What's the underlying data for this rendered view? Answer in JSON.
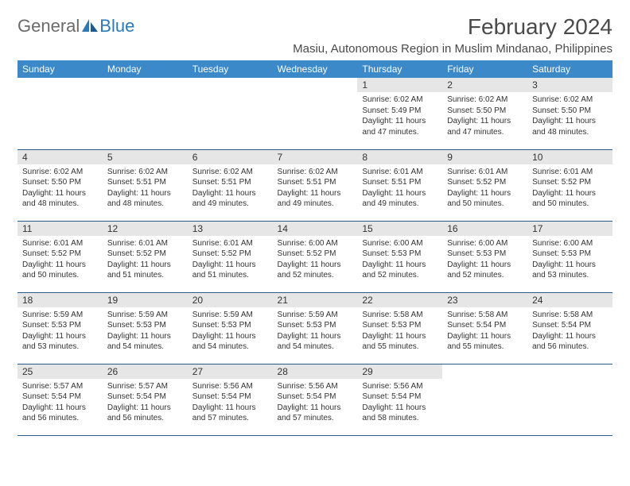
{
  "logo": {
    "text1": "General",
    "text2": "Blue"
  },
  "title": "February 2024",
  "subtitle": "Masiu, Autonomous Region in Muslim Mindanao, Philippines",
  "colors": {
    "header_bg": "#3b89c9",
    "row_divider": "#2a5a8a",
    "daynum_bg": "#e6e6e6",
    "text": "#333333",
    "logo_gray": "#6a6a6a",
    "logo_blue": "#2a7ab8"
  },
  "weekdays": [
    "Sunday",
    "Monday",
    "Tuesday",
    "Wednesday",
    "Thursday",
    "Friday",
    "Saturday"
  ],
  "weeks": [
    [
      null,
      null,
      null,
      null,
      {
        "n": "1",
        "sr": "6:02 AM",
        "ss": "5:49 PM",
        "dl": "11 hours and 47 minutes."
      },
      {
        "n": "2",
        "sr": "6:02 AM",
        "ss": "5:50 PM",
        "dl": "11 hours and 47 minutes."
      },
      {
        "n": "3",
        "sr": "6:02 AM",
        "ss": "5:50 PM",
        "dl": "11 hours and 48 minutes."
      }
    ],
    [
      {
        "n": "4",
        "sr": "6:02 AM",
        "ss": "5:50 PM",
        "dl": "11 hours and 48 minutes."
      },
      {
        "n": "5",
        "sr": "6:02 AM",
        "ss": "5:51 PM",
        "dl": "11 hours and 48 minutes."
      },
      {
        "n": "6",
        "sr": "6:02 AM",
        "ss": "5:51 PM",
        "dl": "11 hours and 49 minutes."
      },
      {
        "n": "7",
        "sr": "6:02 AM",
        "ss": "5:51 PM",
        "dl": "11 hours and 49 minutes."
      },
      {
        "n": "8",
        "sr": "6:01 AM",
        "ss": "5:51 PM",
        "dl": "11 hours and 49 minutes."
      },
      {
        "n": "9",
        "sr": "6:01 AM",
        "ss": "5:52 PM",
        "dl": "11 hours and 50 minutes."
      },
      {
        "n": "10",
        "sr": "6:01 AM",
        "ss": "5:52 PM",
        "dl": "11 hours and 50 minutes."
      }
    ],
    [
      {
        "n": "11",
        "sr": "6:01 AM",
        "ss": "5:52 PM",
        "dl": "11 hours and 50 minutes."
      },
      {
        "n": "12",
        "sr": "6:01 AM",
        "ss": "5:52 PM",
        "dl": "11 hours and 51 minutes."
      },
      {
        "n": "13",
        "sr": "6:01 AM",
        "ss": "5:52 PM",
        "dl": "11 hours and 51 minutes."
      },
      {
        "n": "14",
        "sr": "6:00 AM",
        "ss": "5:52 PM",
        "dl": "11 hours and 52 minutes."
      },
      {
        "n": "15",
        "sr": "6:00 AM",
        "ss": "5:53 PM",
        "dl": "11 hours and 52 minutes."
      },
      {
        "n": "16",
        "sr": "6:00 AM",
        "ss": "5:53 PM",
        "dl": "11 hours and 52 minutes."
      },
      {
        "n": "17",
        "sr": "6:00 AM",
        "ss": "5:53 PM",
        "dl": "11 hours and 53 minutes."
      }
    ],
    [
      {
        "n": "18",
        "sr": "5:59 AM",
        "ss": "5:53 PM",
        "dl": "11 hours and 53 minutes."
      },
      {
        "n": "19",
        "sr": "5:59 AM",
        "ss": "5:53 PM",
        "dl": "11 hours and 54 minutes."
      },
      {
        "n": "20",
        "sr": "5:59 AM",
        "ss": "5:53 PM",
        "dl": "11 hours and 54 minutes."
      },
      {
        "n": "21",
        "sr": "5:59 AM",
        "ss": "5:53 PM",
        "dl": "11 hours and 54 minutes."
      },
      {
        "n": "22",
        "sr": "5:58 AM",
        "ss": "5:53 PM",
        "dl": "11 hours and 55 minutes."
      },
      {
        "n": "23",
        "sr": "5:58 AM",
        "ss": "5:54 PM",
        "dl": "11 hours and 55 minutes."
      },
      {
        "n": "24",
        "sr": "5:58 AM",
        "ss": "5:54 PM",
        "dl": "11 hours and 56 minutes."
      }
    ],
    [
      {
        "n": "25",
        "sr": "5:57 AM",
        "ss": "5:54 PM",
        "dl": "11 hours and 56 minutes."
      },
      {
        "n": "26",
        "sr": "5:57 AM",
        "ss": "5:54 PM",
        "dl": "11 hours and 56 minutes."
      },
      {
        "n": "27",
        "sr": "5:56 AM",
        "ss": "5:54 PM",
        "dl": "11 hours and 57 minutes."
      },
      {
        "n": "28",
        "sr": "5:56 AM",
        "ss": "5:54 PM",
        "dl": "11 hours and 57 minutes."
      },
      {
        "n": "29",
        "sr": "5:56 AM",
        "ss": "5:54 PM",
        "dl": "11 hours and 58 minutes."
      },
      null,
      null
    ]
  ],
  "labels": {
    "sunrise": "Sunrise:",
    "sunset": "Sunset:",
    "daylight": "Daylight:"
  }
}
